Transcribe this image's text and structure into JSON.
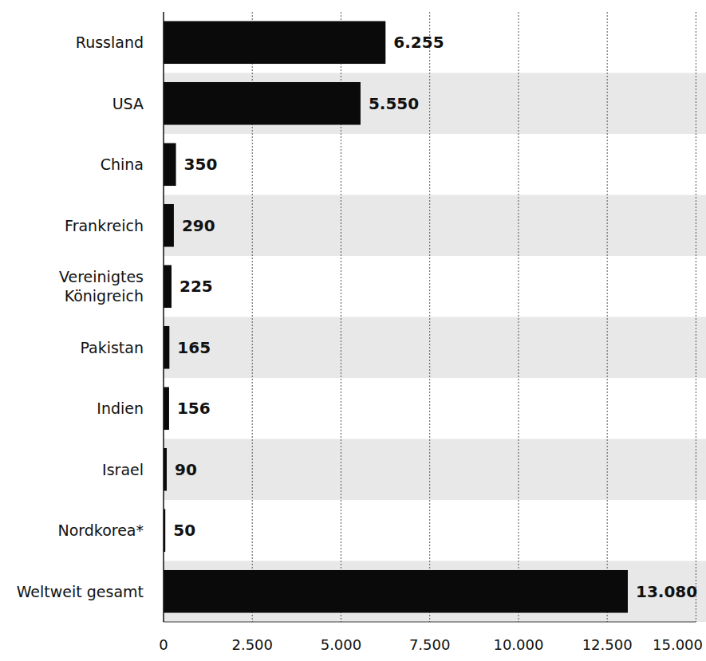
{
  "chart_data": {
    "type": "bar",
    "orientation": "horizontal",
    "categories": [
      "Russland",
      "USA",
      "China",
      "Frankreich",
      "Vereinigtes Königreich",
      "Pakistan",
      "Indien",
      "Israel",
      "Nordkorea*",
      "Weltweit gesamt"
    ],
    "values": [
      6255,
      5550,
      350,
      290,
      225,
      165,
      156,
      90,
      50,
      13080
    ],
    "value_labels": [
      "6.255",
      "5.550",
      "350",
      "290",
      "225",
      "165",
      "156",
      "90",
      "50",
      "13.080"
    ],
    "data_labels": true,
    "color": "#0a0a0a",
    "xlim": [
      0,
      15000
    ],
    "xticks": [
      0,
      {
        "value": 2500,
        "label": "2.500"
      },
      {
        "value": 5000,
        "label": "5.000"
      },
      {
        "value": 7500,
        "label": "7.500"
      },
      {
        "value": 10000,
        "label": "10.000"
      },
      {
        "value": 12500,
        "label": "12.500"
      },
      {
        "value": 15000,
        "label": "15.000"
      }
    ],
    "grid": true
  }
}
